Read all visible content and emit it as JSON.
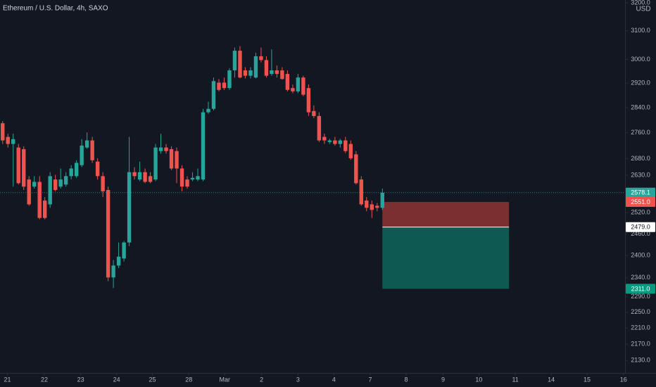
{
  "chart_data": {
    "type": "candlestick",
    "title": "Ethereum / U.S. Dollar, 4h, SAXO",
    "currency": "USD",
    "log_scale": true,
    "up_color": "#26a69a",
    "down_color": "#ef5350",
    "xlim": [
      -0.5,
      118
    ],
    "ylim": [
      2100,
      3210
    ],
    "xticks": [
      {
        "value": 0.9,
        "label": "21"
      },
      {
        "value": 7.9,
        "label": "22"
      },
      {
        "value": 14.8,
        "label": "23"
      },
      {
        "value": 21.6,
        "label": "24"
      },
      {
        "value": 28.4,
        "label": "25"
      },
      {
        "value": 35.3,
        "label": "28"
      },
      {
        "value": 42.1,
        "label": "Mar"
      },
      {
        "value": 49.1,
        "label": "2"
      },
      {
        "value": 56,
        "label": "3"
      },
      {
        "value": 62.8,
        "label": "4"
      },
      {
        "value": 69.7,
        "label": "7"
      },
      {
        "value": 76.5,
        "label": "8"
      },
      {
        "value": 83.5,
        "label": "9"
      },
      {
        "value": 90.3,
        "label": "10"
      },
      {
        "value": 97.2,
        "label": "11"
      },
      {
        "value": 104,
        "label": "14"
      },
      {
        "value": 110.8,
        "label": "15"
      },
      {
        "value": 117.7,
        "label": "16"
      }
    ],
    "yticks": [
      {
        "value": 2130,
        "label": "2130.0"
      },
      {
        "value": 2170,
        "label": "2170.0"
      },
      {
        "value": 2210,
        "label": "2210.0"
      },
      {
        "value": 2250,
        "label": "2250.0"
      },
      {
        "value": 2290,
        "label": "2290.0"
      },
      {
        "value": 2340,
        "label": "2340.0"
      },
      {
        "value": 2400,
        "label": "2400.0"
      },
      {
        "value": 2460,
        "label": "2460.0"
      },
      {
        "value": 2520,
        "label": "2520.0"
      },
      {
        "value": 2630,
        "label": "2630.0"
      },
      {
        "value": 2680,
        "label": "2680.0"
      },
      {
        "value": 2760,
        "label": "2760.0"
      },
      {
        "value": 2840,
        "label": "2840.0"
      },
      {
        "value": 2920,
        "label": "2920.0"
      },
      {
        "value": 3000,
        "label": "3000.0"
      },
      {
        "value": 3100,
        "label": "3100.0"
      },
      {
        "value": 3200,
        "label": "3200.0"
      }
    ],
    "open": [
      2790,
      2747,
      2725,
      2714,
      2709,
      2617,
      2596,
      2610,
      2555,
      2544,
      2617,
      2596,
      2602,
      2627,
      2627,
      2660,
      2714,
      2736,
      2671,
      2627,
      2586,
      2341,
      2373,
      2392,
      2436,
      2639,
      2617,
      2639,
      2627,
      2617,
      2703,
      2714,
      2709,
      2703,
      2650,
      2617,
      2617,
      2617,
      2617,
      2825,
      2836,
      2922,
      2922,
      2904,
      2963,
      3030,
      2963,
      2945,
      2939,
      3011,
      2998,
      2951,
      2963,
      2963,
      2951,
      2904,
      2893,
      2939,
      2904,
      2829,
      2813,
      2747,
      2731,
      2736,
      2725,
      2736,
      2725,
      2693,
      2617,
      2555,
      2544,
      2540,
      2534
    ],
    "high": [
      2797,
      2757,
      2757,
      2725,
      2718,
      2627,
      2627,
      2627,
      2565,
      2639,
      2631,
      2650,
      2639,
      2660,
      2675,
      2740,
      2761,
      2747,
      2681,
      2639,
      2596,
      2388,
      2436,
      2440,
      2747,
      2654,
      2671,
      2650,
      2639,
      2725,
      2757,
      2725,
      2718,
      2714,
      2660,
      2627,
      2639,
      2650,
      2836,
      2859,
      2939,
      2934,
      2939,
      2970,
      3041,
      3046,
      2974,
      2974,
      3023,
      3041,
      3011,
      3035,
      2980,
      2974,
      2963,
      2916,
      2951,
      2945,
      2916,
      2847,
      2825,
      2757,
      2741,
      2747,
      2741,
      2747,
      2736,
      2703,
      2627,
      2565,
      2555,
      2548,
      2590
    ],
    "low": [
      2725,
      2714,
      2596,
      2602,
      2586,
      2540,
      2590,
      2501,
      2501,
      2534,
      2582,
      2590,
      2596,
      2617,
      2622,
      2654,
      2710,
      2667,
      2617,
      2565,
      2331,
      2313,
      2366,
      2384,
      2426,
      2617,
      2612,
      2606,
      2606,
      2612,
      2695,
      2695,
      2645,
      2606,
      2582,
      2590,
      2612,
      2612,
      2612,
      2820,
      2831,
      2893,
      2898,
      2898,
      2939,
      2936,
      2936,
      2936,
      2936,
      2990,
      2939,
      2945,
      2939,
      2932,
      2893,
      2887,
      2887,
      2877,
      2813,
      2806,
      2731,
      2725,
      2725,
      2720,
      2714,
      2697,
      2676,
      2602,
      2540,
      2524,
      2505,
      2524,
      2528
    ],
    "close": [
      2736,
      2725,
      2740,
      2606,
      2596,
      2544,
      2610,
      2505,
      2505,
      2627,
      2586,
      2617,
      2627,
      2650,
      2667,
      2720,
      2736,
      2675,
      2627,
      2582,
      2341,
      2373,
      2397,
      2436,
      2639,
      2627,
      2639,
      2610,
      2610,
      2714,
      2714,
      2703,
      2650,
      2650,
      2596,
      2596,
      2622,
      2627,
      2825,
      2836,
      2927,
      2898,
      2904,
      2963,
      3030,
      2939,
      2945,
      2963,
      3011,
      2998,
      2945,
      2963,
      2951,
      2934,
      2898,
      2893,
      2939,
      2882,
      2825,
      2813,
      2736,
      2736,
      2736,
      2725,
      2736,
      2703,
      2681,
      2606,
      2544,
      2534,
      2528,
      2534,
      2578.1
    ],
    "last_price": 2578.1,
    "position": {
      "stop": {
        "value": 2551,
        "label": "2551.0"
      },
      "entry": {
        "value": 2479,
        "label": "2479.0"
      },
      "target": {
        "value": 2311,
        "label": "2311.0"
      },
      "x_start": 72,
      "x_end": 96,
      "loss_color": "#7b2f31",
      "profit_color": "#0e5a52"
    }
  }
}
